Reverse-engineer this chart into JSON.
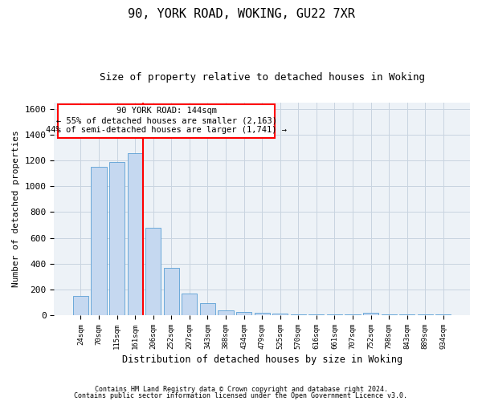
{
  "title1": "90, YORK ROAD, WOKING, GU22 7XR",
  "title2": "Size of property relative to detached houses in Woking",
  "xlabel": "Distribution of detached houses by size in Woking",
  "ylabel": "Number of detached properties",
  "categories": [
    "24sqm",
    "70sqm",
    "115sqm",
    "161sqm",
    "206sqm",
    "252sqm",
    "297sqm",
    "343sqm",
    "388sqm",
    "434sqm",
    "479sqm",
    "525sqm",
    "570sqm",
    "616sqm",
    "661sqm",
    "707sqm",
    "752sqm",
    "798sqm",
    "843sqm",
    "889sqm",
    "934sqm"
  ],
  "values": [
    150,
    1150,
    1190,
    1255,
    680,
    370,
    170,
    95,
    40,
    25,
    20,
    10,
    5,
    5,
    5,
    5,
    20,
    5,
    5,
    5,
    5
  ],
  "bar_color": "#c5d8f0",
  "bar_edge_color": "#5a9fd4",
  "annotation_text1": "90 YORK ROAD: 144sqm",
  "annotation_text2": "← 55% of detached houses are smaller (2,163)",
  "annotation_text3": "44% of semi-detached houses are larger (1,741) →",
  "ylim": [
    0,
    1650
  ],
  "yticks": [
    0,
    200,
    400,
    600,
    800,
    1000,
    1200,
    1400,
    1600
  ],
  "footer1": "Contains HM Land Registry data © Crown copyright and database right 2024.",
  "footer2": "Contains public sector information licensed under the Open Government Licence v3.0.",
  "grid_color": "#c8d4e0",
  "bg_color": "#edf2f7"
}
